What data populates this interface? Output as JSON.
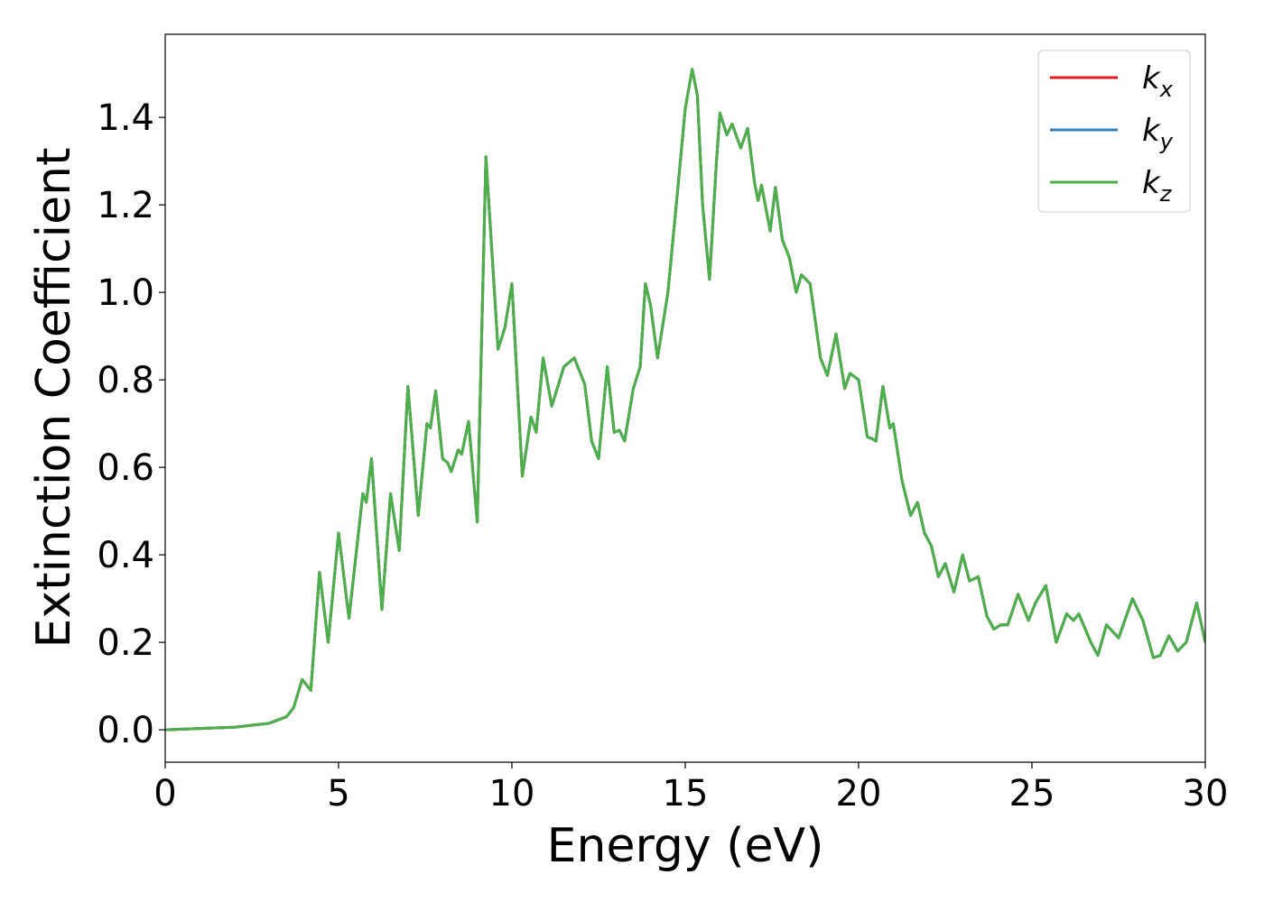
{
  "chart_data": {
    "type": "line",
    "xlabel": "Energy (eV)",
    "ylabel": "Extinction Coefficient",
    "x": [
      0,
      1,
      2,
      3,
      3.5,
      3.7,
      3.95,
      4.2,
      4.45,
      4.7,
      5.0,
      5.3,
      5.7,
      5.8,
      5.95,
      6.25,
      6.5,
      6.75,
      7.0,
      7.3,
      7.55,
      7.65,
      7.8,
      8.0,
      8.15,
      8.25,
      8.45,
      8.55,
      8.75,
      9.0,
      9.25,
      9.6,
      9.8,
      10.0,
      10.3,
      10.55,
      10.7,
      10.9,
      11.15,
      11.5,
      11.8,
      12.1,
      12.3,
      12.5,
      12.75,
      12.95,
      13.1,
      13.25,
      13.5,
      13.7,
      13.85,
      14.0,
      14.2,
      14.5,
      14.8,
      15.0,
      15.2,
      15.35,
      15.5,
      15.7,
      15.9,
      16.0,
      16.2,
      16.35,
      16.6,
      16.8,
      17.0,
      17.1,
      17.2,
      17.45,
      17.6,
      17.8,
      18.0,
      18.2,
      18.35,
      18.6,
      18.9,
      19.1,
      19.35,
      19.6,
      19.75,
      20.0,
      20.25,
      20.4,
      20.5,
      20.7,
      20.9,
      21.0,
      21.25,
      21.5,
      21.7,
      21.9,
      22.1,
      22.3,
      22.5,
      22.75,
      23.0,
      23.2,
      23.45,
      23.7,
      23.9,
      24.1,
      24.3,
      24.6,
      24.9,
      25.1,
      25.4,
      25.7,
      26.0,
      26.2,
      26.35,
      26.7,
      26.9,
      27.15,
      27.5,
      27.9,
      28.2,
      28.5,
      28.7,
      28.95,
      29.2,
      29.45,
      29.75,
      30.0
    ],
    "series": [
      {
        "name": "k_x",
        "color": "#e41a1c",
        "values": [
          0,
          0.003,
          0.006,
          0.015,
          0.03,
          0.05,
          0.115,
          0.09,
          0.36,
          0.2,
          0.45,
          0.255,
          0.54,
          0.52,
          0.62,
          0.275,
          0.54,
          0.41,
          0.785,
          0.49,
          0.7,
          0.69,
          0.775,
          0.62,
          0.61,
          0.59,
          0.64,
          0.63,
          0.705,
          0.475,
          1.31,
          0.87,
          0.92,
          1.02,
          0.58,
          0.715,
          0.68,
          0.85,
          0.74,
          0.83,
          0.85,
          0.79,
          0.66,
          0.62,
          0.83,
          0.68,
          0.685,
          0.66,
          0.78,
          0.83,
          1.02,
          0.97,
          0.85,
          1.0,
          1.25,
          1.42,
          1.51,
          1.45,
          1.2,
          1.03,
          1.3,
          1.41,
          1.36,
          1.385,
          1.33,
          1.375,
          1.25,
          1.21,
          1.245,
          1.14,
          1.24,
          1.12,
          1.08,
          1.0,
          1.04,
          1.02,
          0.85,
          0.81,
          0.905,
          0.78,
          0.815,
          0.8,
          0.67,
          0.665,
          0.66,
          0.785,
          0.69,
          0.7,
          0.57,
          0.49,
          0.52,
          0.45,
          0.42,
          0.35,
          0.38,
          0.315,
          0.4,
          0.34,
          0.35,
          0.26,
          0.23,
          0.24,
          0.24,
          0.31,
          0.25,
          0.29,
          0.33,
          0.2,
          0.265,
          0.25,
          0.265,
          0.2,
          0.17,
          0.24,
          0.21,
          0.3,
          0.25,
          0.165,
          0.17,
          0.215,
          0.18,
          0.2,
          0.29,
          0.2
        ]
      },
      {
        "name": "k_y",
        "color": "#377eb8",
        "values": [
          0,
          0.003,
          0.006,
          0.015,
          0.03,
          0.05,
          0.115,
          0.09,
          0.36,
          0.2,
          0.45,
          0.255,
          0.54,
          0.52,
          0.62,
          0.275,
          0.54,
          0.41,
          0.785,
          0.49,
          0.7,
          0.69,
          0.775,
          0.62,
          0.61,
          0.59,
          0.64,
          0.63,
          0.705,
          0.475,
          1.31,
          0.87,
          0.92,
          1.02,
          0.58,
          0.715,
          0.68,
          0.85,
          0.74,
          0.83,
          0.85,
          0.79,
          0.66,
          0.62,
          0.83,
          0.68,
          0.685,
          0.66,
          0.78,
          0.83,
          1.02,
          0.97,
          0.85,
          1.0,
          1.25,
          1.42,
          1.51,
          1.45,
          1.2,
          1.03,
          1.3,
          1.41,
          1.36,
          1.385,
          1.33,
          1.375,
          1.25,
          1.21,
          1.245,
          1.14,
          1.24,
          1.12,
          1.08,
          1.0,
          1.04,
          1.02,
          0.85,
          0.81,
          0.905,
          0.78,
          0.815,
          0.8,
          0.67,
          0.665,
          0.66,
          0.785,
          0.69,
          0.7,
          0.57,
          0.49,
          0.52,
          0.45,
          0.42,
          0.35,
          0.38,
          0.315,
          0.4,
          0.34,
          0.35,
          0.26,
          0.23,
          0.24,
          0.24,
          0.31,
          0.25,
          0.29,
          0.33,
          0.2,
          0.265,
          0.25,
          0.265,
          0.2,
          0.17,
          0.24,
          0.21,
          0.3,
          0.25,
          0.165,
          0.17,
          0.215,
          0.18,
          0.2,
          0.29,
          0.2
        ]
      },
      {
        "name": "k_z",
        "color": "#4daf4a",
        "values": [
          0,
          0.003,
          0.006,
          0.015,
          0.03,
          0.05,
          0.115,
          0.09,
          0.36,
          0.2,
          0.45,
          0.255,
          0.54,
          0.52,
          0.62,
          0.275,
          0.54,
          0.41,
          0.785,
          0.49,
          0.7,
          0.69,
          0.775,
          0.62,
          0.61,
          0.59,
          0.64,
          0.63,
          0.705,
          0.475,
          1.31,
          0.87,
          0.92,
          1.02,
          0.58,
          0.715,
          0.68,
          0.85,
          0.74,
          0.83,
          0.85,
          0.79,
          0.66,
          0.62,
          0.83,
          0.68,
          0.685,
          0.66,
          0.78,
          0.83,
          1.02,
          0.97,
          0.85,
          1.0,
          1.25,
          1.42,
          1.51,
          1.45,
          1.2,
          1.03,
          1.3,
          1.41,
          1.36,
          1.385,
          1.33,
          1.375,
          1.25,
          1.21,
          1.245,
          1.14,
          1.24,
          1.12,
          1.08,
          1.0,
          1.04,
          1.02,
          0.85,
          0.81,
          0.905,
          0.78,
          0.815,
          0.8,
          0.67,
          0.665,
          0.66,
          0.785,
          0.69,
          0.7,
          0.57,
          0.49,
          0.52,
          0.45,
          0.42,
          0.35,
          0.38,
          0.315,
          0.4,
          0.34,
          0.35,
          0.26,
          0.23,
          0.24,
          0.24,
          0.31,
          0.25,
          0.29,
          0.33,
          0.2,
          0.265,
          0.25,
          0.265,
          0.2,
          0.17,
          0.24,
          0.21,
          0.3,
          0.25,
          0.165,
          0.17,
          0.215,
          0.18,
          0.2,
          0.29,
          0.2
        ]
      }
    ],
    "xlim": [
      0,
      30
    ],
    "xticks": [
      0,
      5,
      10,
      15,
      20,
      25,
      30
    ],
    "ylim": [
      -0.074,
      1.59
    ],
    "yticks": [
      {
        "value": 0,
        "label": "0.0"
      },
      0.2,
      0.4,
      0.6,
      0.8,
      {
        "value": 1,
        "label": "1.0"
      },
      1.2,
      1.4
    ],
    "grid": false,
    "legend": "upper right"
  }
}
